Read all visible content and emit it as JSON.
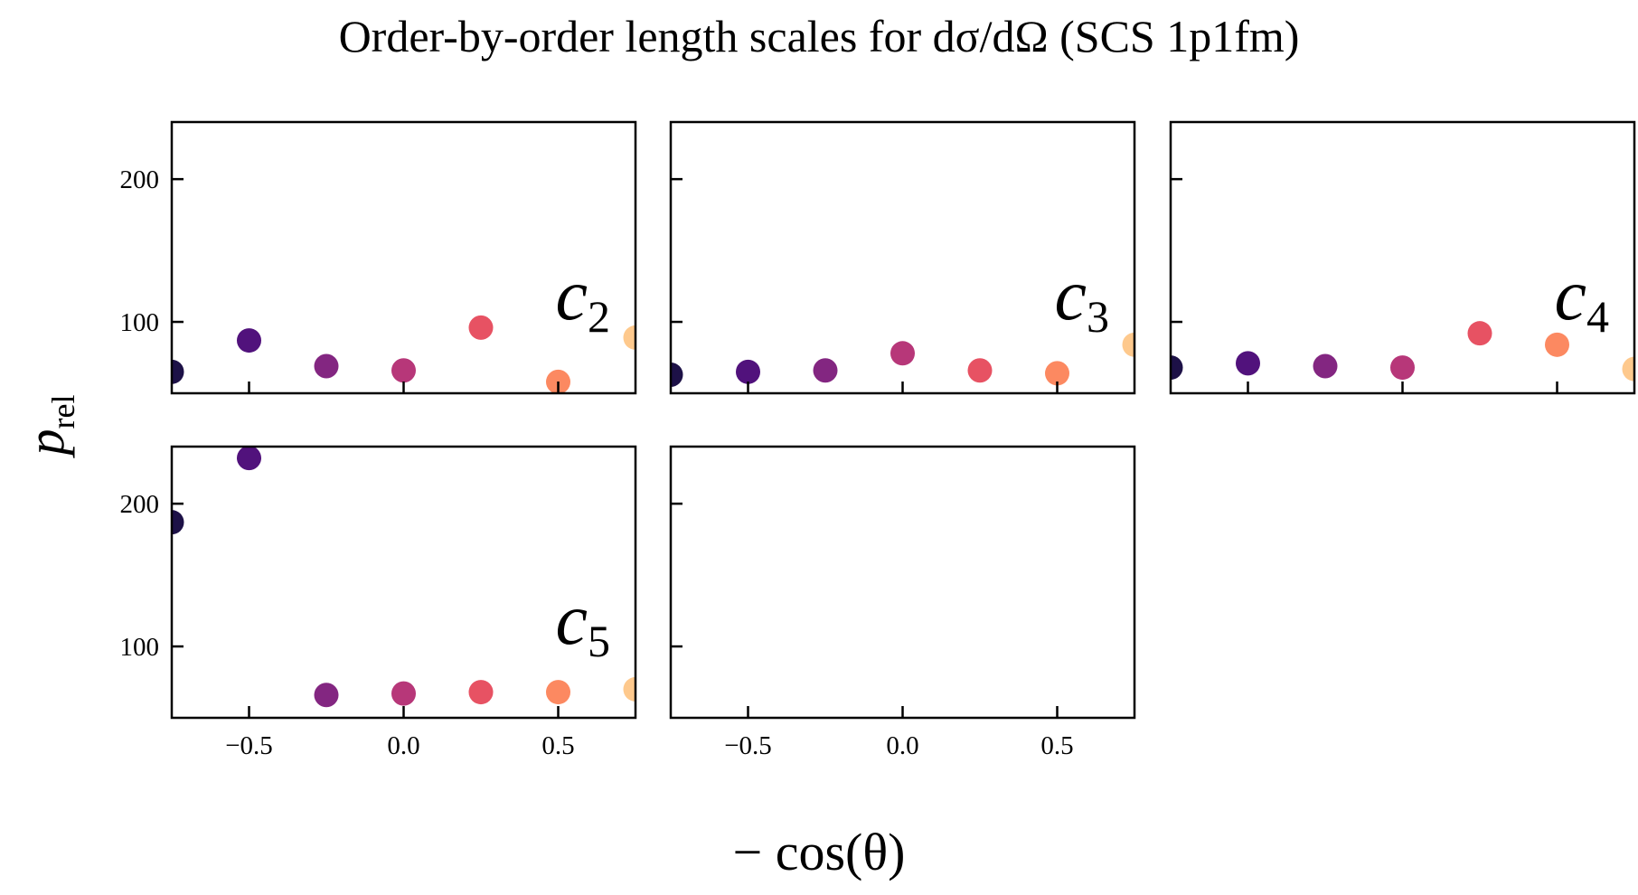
{
  "chart_data": {
    "title": "Order-by-order length scales for dσ/dΩ (SCS 1p1fm)",
    "type": "scatter",
    "xlabel": "− cos(θ)",
    "ylabel": "p_rel",
    "shared_x": [
      -0.75,
      -0.5,
      -0.25,
      0.0,
      0.25,
      0.5,
      0.75
    ],
    "xlim": [
      -0.75,
      0.75
    ],
    "ylim": [
      50,
      240
    ],
    "xticks": [
      -0.5,
      0.0,
      0.5
    ],
    "xtick_labels": [
      "−0.5",
      "0.0",
      "0.5"
    ],
    "yticks": [
      100,
      200
    ],
    "ytick_labels": [
      "100",
      "200"
    ],
    "point_colors": [
      "#1d1147",
      "#51127c",
      "#832681",
      "#b73779",
      "#e75263",
      "#fc8961",
      "#fec98d"
    ],
    "panels": [
      {
        "annotation": "c",
        "annotation_sub": "2",
        "values": [
          65,
          87,
          69,
          66,
          96,
          58,
          89
        ]
      },
      {
        "annotation": "c",
        "annotation_sub": "3",
        "values": [
          63,
          65,
          66,
          78,
          66,
          64,
          84
        ]
      },
      {
        "annotation": "c",
        "annotation_sub": "4",
        "values": [
          68,
          71,
          69,
          68,
          92,
          84,
          67
        ]
      },
      {
        "annotation": "c",
        "annotation_sub": "5",
        "values": [
          187,
          232,
          66,
          67,
          68,
          68,
          70
        ]
      },
      {
        "annotation": "",
        "annotation_sub": "",
        "values": []
      }
    ]
  }
}
